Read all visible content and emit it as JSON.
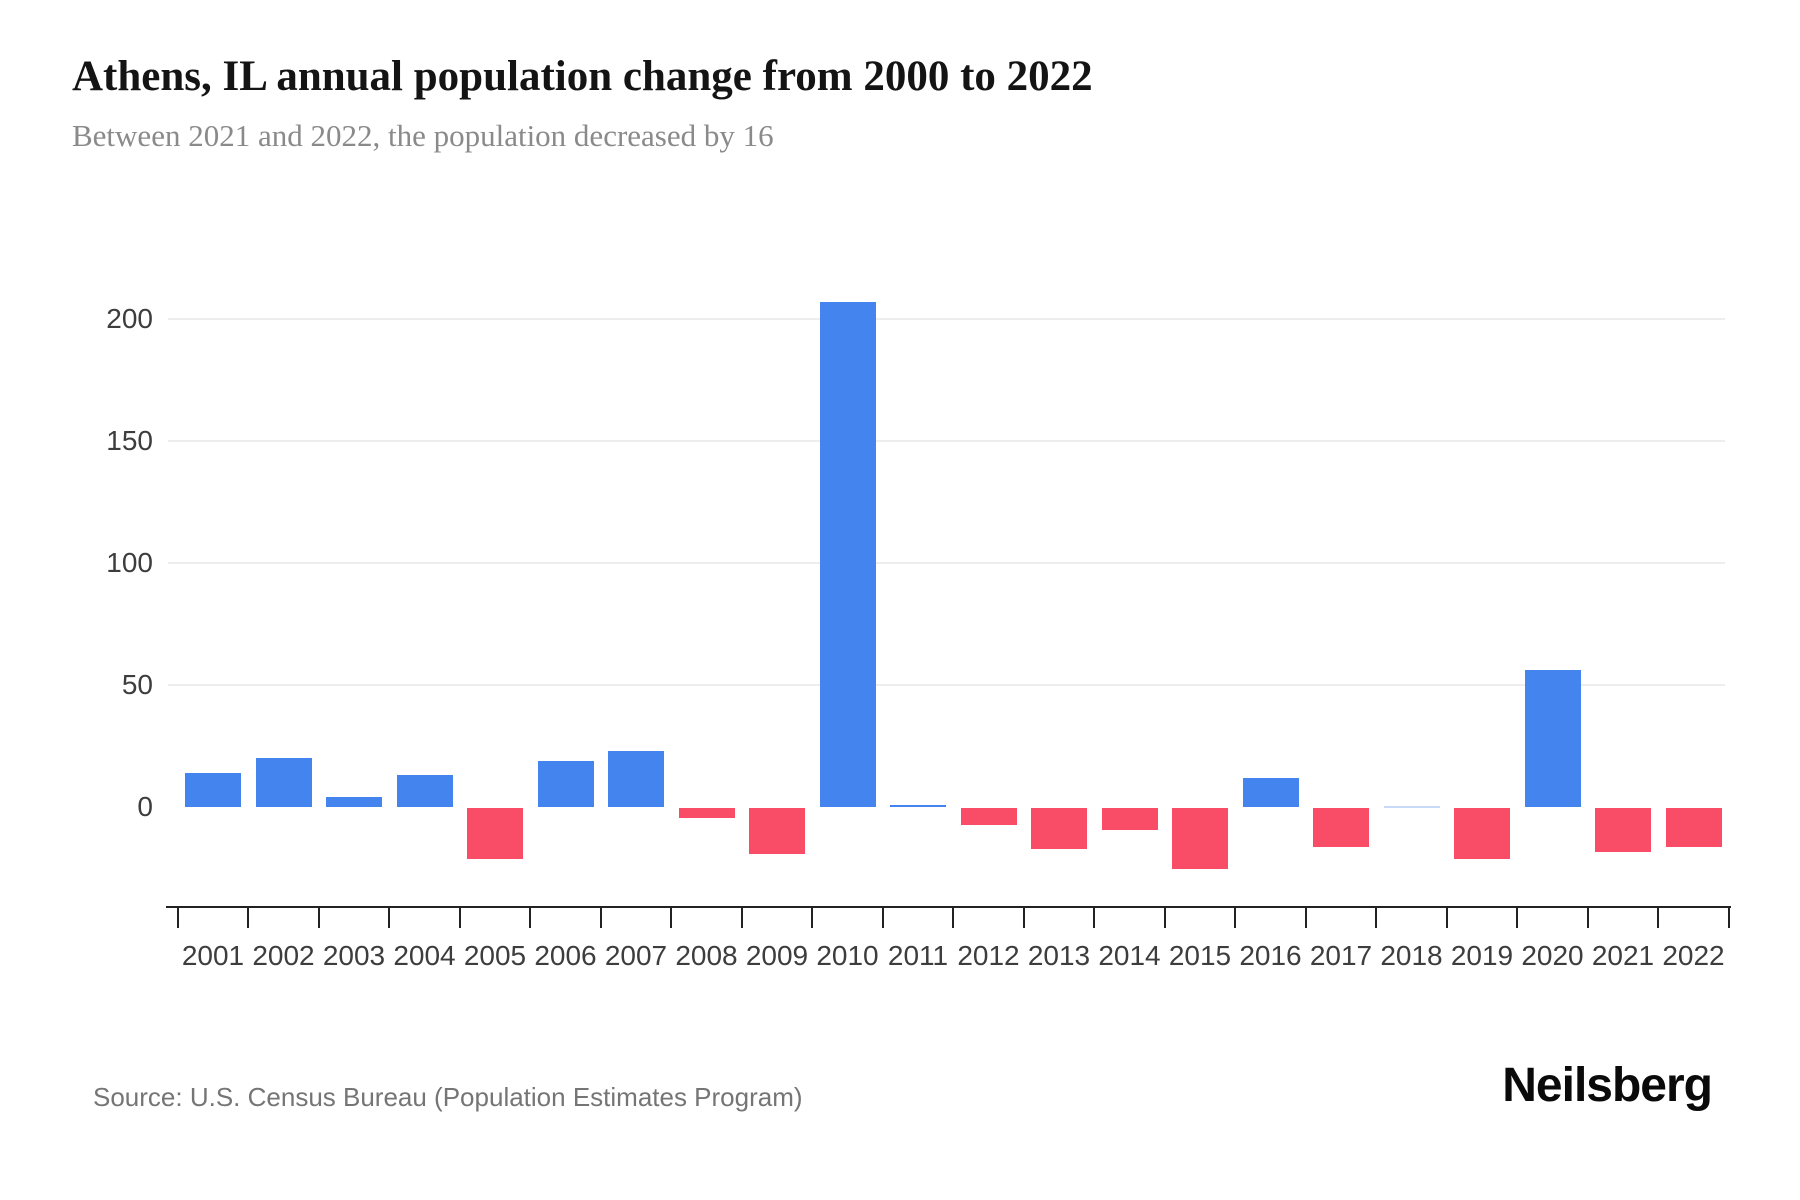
{
  "header": {
    "title": "Athens, IL annual population change from 2000 to 2022",
    "subtitle": "Between 2021 and 2022, the population decreased by 16"
  },
  "chart_data": {
    "type": "bar",
    "title": "Athens, IL annual population change from 2000 to 2022",
    "subtitle": "Between 2021 and 2022, the population decreased by 16",
    "categories": [
      "2001",
      "2002",
      "2003",
      "2004",
      "2005",
      "2006",
      "2007",
      "2008",
      "2009",
      "2010",
      "2011",
      "2012",
      "2013",
      "2014",
      "2015",
      "2016",
      "2017",
      "2018",
      "2019",
      "2020",
      "2021",
      "2022"
    ],
    "values": [
      14,
      20,
      4,
      13,
      -21,
      19,
      23,
      -4,
      -19,
      207,
      1,
      -7,
      -17,
      -9,
      -25,
      12,
      -16,
      0,
      -21,
      56,
      -18,
      -16
    ],
    "xlabel": "",
    "ylabel": "",
    "yticks": [
      0,
      50,
      100,
      150,
      200
    ],
    "ylim": [
      -30,
      215
    ],
    "grid": "horizontal-only-above-zero",
    "legend": "none",
    "colors": {
      "positive": "#4384EE",
      "negative": "#F94C67",
      "zero": "#C9DAF8",
      "axis": "#222222",
      "gridline": "#ededed",
      "tick_label": "#3d3d3d"
    }
  },
  "footer": {
    "source_label": "Source: U.S. Census Bureau (Population Estimates Program)",
    "brand": "Neilsberg"
  }
}
